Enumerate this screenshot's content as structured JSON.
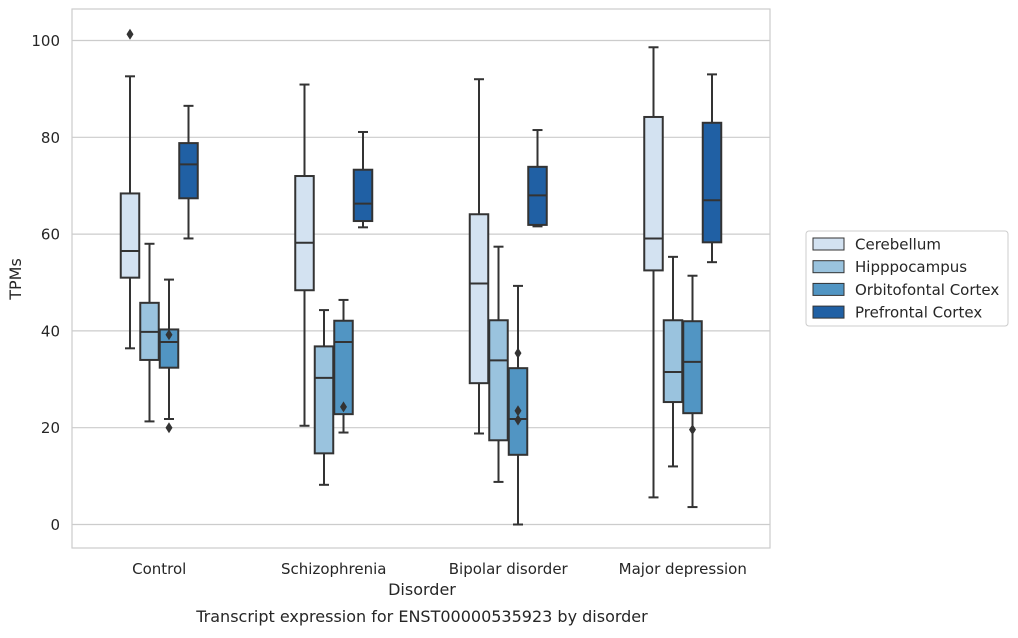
{
  "chart_data": {
    "type": "box",
    "title": "",
    "caption": "Transcript expression for ENST00000535923 by disorder",
    "xlabel": "Disorder",
    "ylabel": "TPMs",
    "categories": [
      "Control",
      "Schizophrenia",
      "Bipolar disorder",
      "Major depression"
    ],
    "ylim": [
      -5,
      106.5
    ],
    "yticks": [
      0,
      20,
      40,
      60,
      80,
      100
    ],
    "grid": true,
    "legend_position": "right",
    "series": [
      {
        "name": "Cerebellum",
        "color": "#d3e2f1",
        "boxes": [
          {
            "whislo": 36.4,
            "q1": 51.0,
            "med": 56.5,
            "q3": 68.4,
            "whishi": 92.6,
            "fliers": [
              101.3
            ]
          },
          {
            "whislo": 20.4,
            "q1": 48.4,
            "med": 58.2,
            "q3": 72.0,
            "whishi": 90.9,
            "fliers": []
          },
          {
            "whislo": 18.8,
            "q1": 29.2,
            "med": 49.8,
            "q3": 64.1,
            "whishi": 92.0,
            "fliers": []
          },
          {
            "whislo": 5.6,
            "q1": 52.5,
            "med": 59.1,
            "q3": 84.2,
            "whishi": 98.6,
            "fliers": []
          }
        ]
      },
      {
        "name": "Hipppocampus",
        "color": "#9ac3de",
        "boxes": [
          {
            "whislo": 21.3,
            "q1": 34.0,
            "med": 39.8,
            "q3": 45.8,
            "whishi": 58.0,
            "fliers": []
          },
          {
            "whislo": 8.2,
            "q1": 14.7,
            "med": 30.3,
            "q3": 36.8,
            "whishi": 44.3,
            "fliers": []
          },
          {
            "whislo": 8.8,
            "q1": 17.4,
            "med": 33.9,
            "q3": 42.2,
            "whishi": 57.4,
            "fliers": []
          },
          {
            "whislo": 12.0,
            "q1": 25.3,
            "med": 31.5,
            "q3": 42.2,
            "whishi": 55.3,
            "fliers": []
          }
        ]
      },
      {
        "name": "Orbitofontal Cortex",
        "color": "#5195c3",
        "boxes": [
          {
            "whislo": 21.8,
            "q1": 32.4,
            "med": 37.7,
            "q3": 40.3,
            "whishi": 50.6,
            "fliers": [
              39.2,
              20.0
            ]
          },
          {
            "whislo": 19.0,
            "q1": 22.8,
            "med": 37.7,
            "q3": 42.1,
            "whishi": 46.4,
            "fliers": [
              24.3
            ]
          },
          {
            "whislo": 0.0,
            "q1": 14.4,
            "med": 21.8,
            "q3": 32.3,
            "whishi": 49.3,
            "fliers": [
              35.4,
              23.5,
              21.6
            ]
          },
          {
            "whislo": 3.6,
            "q1": 23.0,
            "med": 33.6,
            "q3": 42.0,
            "whishi": 51.4,
            "fliers": [
              19.6
            ]
          }
        ]
      },
      {
        "name": "Prefrontal Cortex",
        "color": "#2060a4",
        "boxes": [
          {
            "whislo": 59.1,
            "q1": 67.4,
            "med": 74.4,
            "q3": 78.8,
            "whishi": 86.5,
            "fliers": []
          },
          {
            "whislo": 61.4,
            "q1": 62.7,
            "med": 66.3,
            "q3": 73.3,
            "whishi": 81.1,
            "fliers": []
          },
          {
            "whislo": 61.6,
            "q1": 61.9,
            "med": 68.0,
            "q3": 73.9,
            "whishi": 81.5,
            "fliers": []
          },
          {
            "whislo": 54.2,
            "q1": 58.3,
            "med": 67.0,
            "q3": 83.0,
            "whishi": 93.0,
            "fliers": []
          }
        ]
      }
    ]
  }
}
